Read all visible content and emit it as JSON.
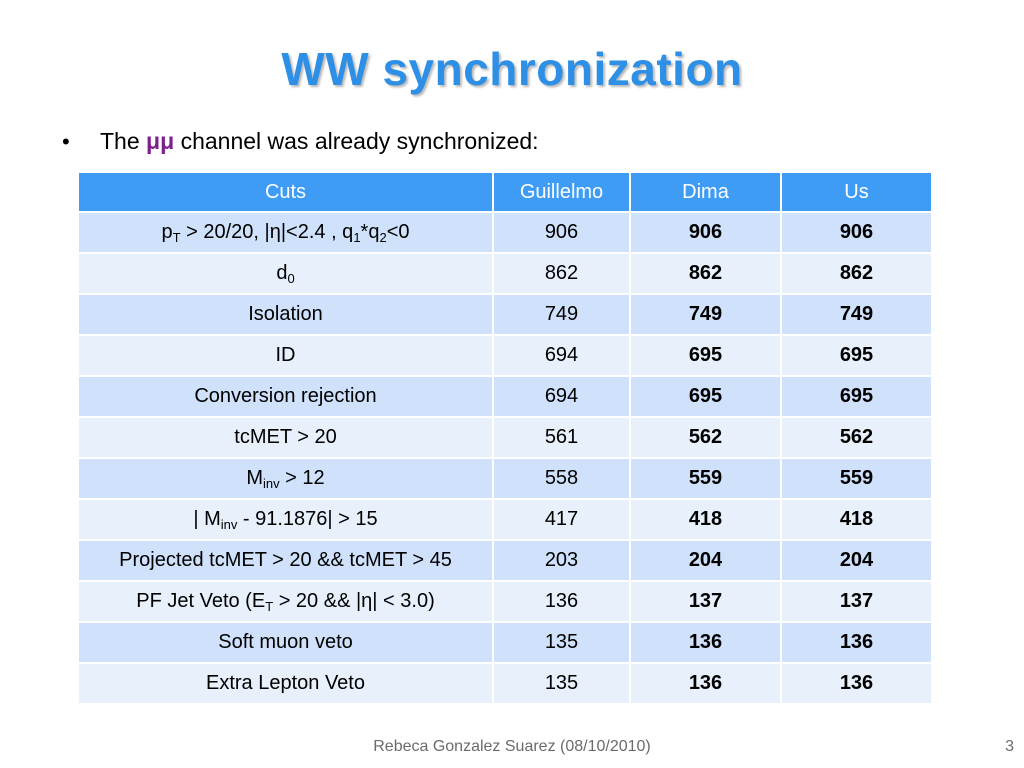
{
  "slide": {
    "title": "WW synchronization",
    "bullet": {
      "prefix": "The",
      "highlight": "μμ",
      "suffix": "channel was already synchronized:"
    },
    "footer": "Rebeca Gonzalez Suarez  (08/10/2010)",
    "page_number": "3"
  },
  "table": {
    "headers": [
      "Cuts",
      "Guillelmo",
      "Dima",
      "Us"
    ],
    "rows": [
      {
        "cut": [
          "p",
          "T",
          " > 20/20, |η|<2.4 , q",
          "1",
          "*q",
          "2",
          "<0"
        ],
        "guillelmo": "906",
        "dima": "906",
        "us": "906"
      },
      {
        "cut": [
          "d",
          "0"
        ],
        "guillelmo": "862",
        "dima": "862",
        "us": "862"
      },
      {
        "cut": [
          "Isolation"
        ],
        "guillelmo": "749",
        "dima": "749",
        "us": "749"
      },
      {
        "cut": [
          "ID"
        ],
        "guillelmo": "694",
        "dima": "695",
        "us": "695"
      },
      {
        "cut": [
          "Conversion rejection"
        ],
        "guillelmo": "694",
        "dima": "695",
        "us": "695"
      },
      {
        "cut": [
          "tcMET > 20"
        ],
        "guillelmo": "561",
        "dima": "562",
        "us": "562"
      },
      {
        "cut": [
          "M",
          "inv",
          " > 12"
        ],
        "guillelmo": "558",
        "dima": "559",
        "us": "559"
      },
      {
        "cut": [
          "| M",
          "inv",
          " - 91.1876| > 15"
        ],
        "guillelmo": "417",
        "dima": "418",
        "us": "418"
      },
      {
        "cut": [
          "Projected tcMET > 20 && tcMET > 45"
        ],
        "guillelmo": "203",
        "dima": "204",
        "us": "204"
      },
      {
        "cut": [
          "PF Jet Veto (E",
          "T",
          " > 20 && |η| < 3.0)"
        ],
        "guillelmo": "136",
        "dima": "137",
        "us": "137"
      },
      {
        "cut": [
          "Soft muon veto"
        ],
        "guillelmo": "135",
        "dima": "136",
        "us": "136"
      },
      {
        "cut": [
          "Extra Lepton Veto"
        ],
        "guillelmo": "135",
        "dima": "136",
        "us": "136"
      }
    ]
  }
}
